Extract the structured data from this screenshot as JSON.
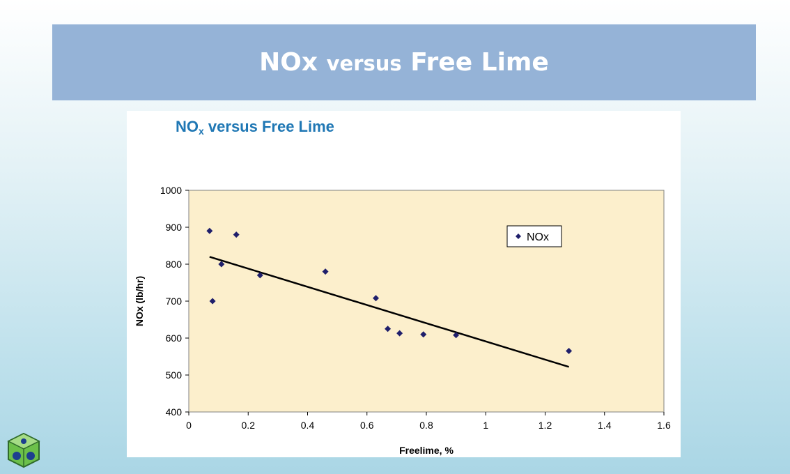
{
  "banner": {
    "title_part1": "NOx",
    "title_part2": "versus",
    "title_part3": "Free Lime"
  },
  "chart_data": {
    "type": "scatter",
    "title_main": "NO",
    "title_sub": "x",
    "title_rest": " versus Free Lime",
    "xlabel": "Freelime, %",
    "ylabel": "NOx (lb/hr)",
    "xlim": [
      0,
      1.6
    ],
    "ylim": [
      400,
      1000
    ],
    "xticks": [
      0,
      0.2,
      0.4,
      0.6,
      0.8,
      1,
      1.2,
      1.4,
      1.6
    ],
    "yticks": [
      400,
      500,
      600,
      700,
      800,
      900,
      1000
    ],
    "legend_position": "top-right",
    "plot_background": "#fcefcc",
    "marker_color": "#1f1f6b",
    "series": [
      {
        "name": "NOx",
        "x": [
          0.07,
          0.08,
          0.11,
          0.16,
          0.24,
          0.46,
          0.63,
          0.67,
          0.71,
          0.79,
          0.9,
          1.28
        ],
        "y": [
          890,
          700,
          800,
          880,
          770,
          780,
          708,
          625,
          613,
          610,
          608,
          565
        ]
      }
    ],
    "trendline": {
      "x": [
        0.07,
        1.28
      ],
      "y": [
        820,
        522
      ]
    }
  }
}
